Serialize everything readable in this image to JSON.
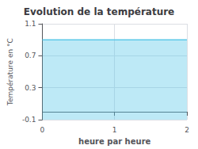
{
  "chart_data": {
    "type": "area",
    "title": "Evolution de la température",
    "xlabel": "heure par heure",
    "ylabel": "Température en °C",
    "x": [
      0,
      2
    ],
    "values": [
      0.9,
      0.9
    ],
    "color": "#5bc8e8",
    "xlim": [
      0,
      2
    ],
    "ylim": [
      -0.1,
      1.1
    ],
    "xticks": [
      0,
      1,
      2
    ],
    "yticks": [
      -0.1,
      0.3,
      0.7,
      1.1
    ],
    "grid": true
  }
}
